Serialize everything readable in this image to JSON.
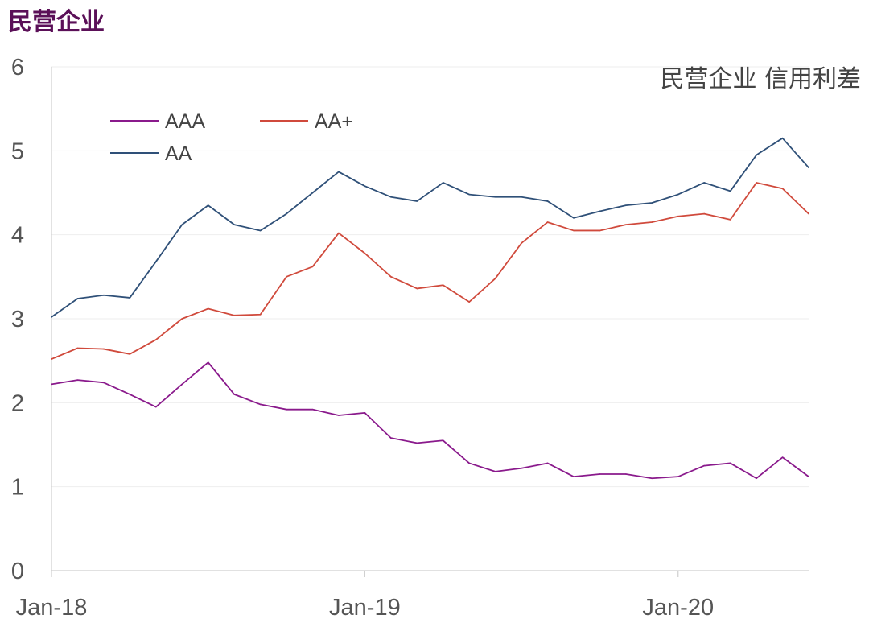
{
  "page": {
    "title": "民营企业"
  },
  "chart_data": {
    "type": "line",
    "title": "民营企业 信用利差",
    "ylim": [
      0,
      6
    ],
    "yticks": [
      "0",
      "1",
      "2",
      "3",
      "4",
      "5",
      "6"
    ],
    "xticks": [
      {
        "label": "Jan-18",
        "x": 0
      },
      {
        "label": "Jan-19",
        "x": 12
      },
      {
        "label": "Jan-20",
        "x": 24
      }
    ],
    "xlim": [
      0,
      29
    ],
    "grid": "horizontal",
    "legend_position": "top-left",
    "x": [
      0,
      1,
      2,
      3,
      4,
      5,
      6,
      7,
      8,
      9,
      10,
      11,
      12,
      13,
      14,
      15,
      16,
      17,
      18,
      19,
      20,
      21,
      22,
      23,
      24,
      25,
      26,
      27,
      28,
      29
    ],
    "series": [
      {
        "name": "AAA",
        "color": "#8a1a8c",
        "values": [
          2.22,
          2.27,
          2.24,
          2.1,
          1.95,
          2.22,
          2.48,
          2.1,
          1.98,
          1.92,
          1.92,
          1.85,
          1.88,
          1.58,
          1.52,
          1.55,
          1.28,
          1.18,
          1.22,
          1.28,
          1.12,
          1.15,
          1.15,
          1.1,
          1.12,
          1.25,
          1.28,
          1.1,
          1.35,
          1.12
        ]
      },
      {
        "name": "AA+",
        "color": "#d04a3c",
        "values": [
          2.52,
          2.65,
          2.64,
          2.58,
          2.75,
          3.0,
          3.12,
          3.04,
          3.05,
          3.5,
          3.62,
          4.02,
          3.78,
          3.5,
          3.36,
          3.4,
          3.2,
          3.48,
          3.9,
          4.15,
          4.05,
          4.05,
          4.12,
          4.15,
          4.22,
          4.25,
          4.18,
          4.62,
          4.55,
          4.25
        ]
      },
      {
        "name": "AA",
        "color": "#2f5078",
        "values": [
          3.02,
          3.24,
          3.28,
          3.25,
          3.68,
          4.12,
          4.35,
          4.12,
          4.05,
          4.25,
          4.5,
          4.75,
          4.58,
          4.45,
          4.4,
          4.62,
          4.48,
          4.45,
          4.45,
          4.4,
          4.2,
          4.28,
          4.35,
          4.38,
          4.48,
          4.62,
          4.52,
          4.95,
          5.15,
          4.8
        ]
      }
    ]
  }
}
